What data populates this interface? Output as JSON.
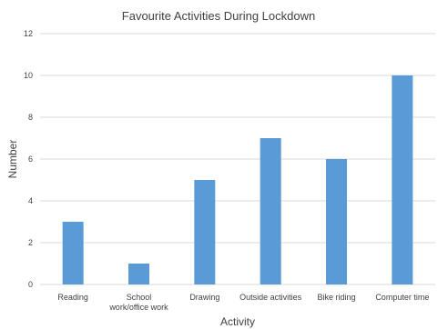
{
  "chart_data": {
    "type": "bar",
    "title": "Favourite Activities During Lockdown",
    "xlabel": "Activity",
    "ylabel": "Number",
    "categories": [
      [
        "Reading"
      ],
      [
        "School",
        "work/office work"
      ],
      [
        "Drawing"
      ],
      [
        "Outside activities"
      ],
      [
        "Bike riding"
      ],
      [
        "Computer time"
      ]
    ],
    "values": [
      3,
      1,
      5,
      7,
      6,
      10
    ],
    "ylim": [
      0,
      12
    ],
    "yticks": [
      0,
      2,
      4,
      6,
      8,
      10,
      12
    ],
    "grid": true,
    "legend": "none",
    "bar_color": "#5b9bd5",
    "grid_color": "#d9d9d9"
  }
}
